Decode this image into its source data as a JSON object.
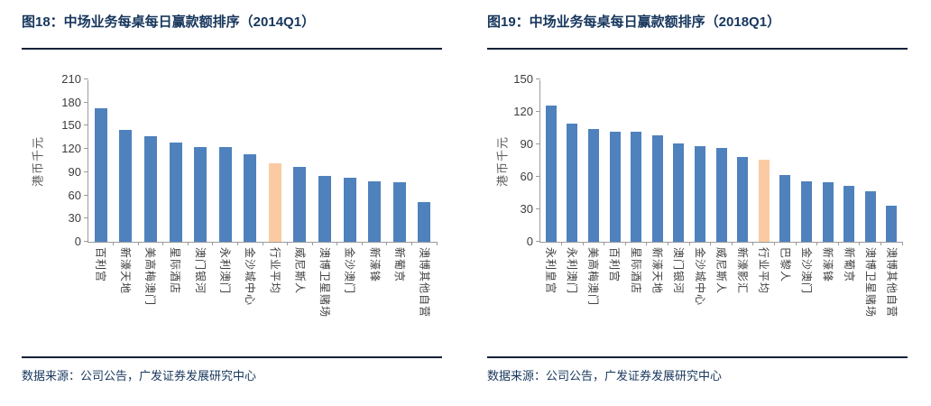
{
  "theme": {
    "navy": "#16365c",
    "rule_color": "#14213a",
    "axis_color": "#9b9b9b",
    "bar_blue": "#4f81bd",
    "bar_highlight_peach": "#facba3"
  },
  "chart_data": [
    {
      "type": "bar",
      "title": "图18：中场业务每桌每日赢款额排序（2014Q1）",
      "ylabel": "港币千元",
      "xlabel": "",
      "source": "数据来源：公司公告，广发证券发展研究中心",
      "ylim": [
        0,
        210
      ],
      "ytick_step": 30,
      "grid": false,
      "legend": false,
      "bar_color": "#4f81bd",
      "highlight_color": "#facba3",
      "highlight_index": 7,
      "highlight_category": "行业平均",
      "categories": [
        "百利宫",
        "新濠天地",
        "美高梅澳门",
        "星际酒店",
        "澳门银河",
        "永利澳门",
        "金沙城中心",
        "行业平均",
        "威尼斯人",
        "澳博卫星赌场",
        "金沙澳门",
        "新濠锋",
        "新葡京",
        "澳博其他自营"
      ],
      "values": [
        173,
        145,
        136,
        128,
        123,
        122,
        113,
        102,
        97,
        85,
        83,
        78,
        77,
        51
      ]
    },
    {
      "type": "bar",
      "title": "图19：中场业务每桌每日赢款额排序（2018Q1）",
      "ylabel": "港币千元",
      "xlabel": "",
      "source": "数据来源：公司公告，广发证券发展研究中心",
      "ylim": [
        0,
        150
      ],
      "ytick_step": 30,
      "grid": false,
      "legend": false,
      "bar_color": "#4f81bd",
      "highlight_color": "#facba3",
      "highlight_index": 10,
      "highlight_category": "行业平均",
      "categories": [
        "永利皇宫",
        "永利澳门",
        "美高梅澳门",
        "百利宫",
        "星际酒店",
        "新濠天地",
        "澳门银河",
        "金沙城中心",
        "威尼斯人",
        "新濠影汇",
        "行业平均",
        "巴黎人",
        "金沙澳门",
        "新濠锋",
        "新葡京",
        "澳博卫星赌场",
        "澳博其他自营"
      ],
      "values": [
        126,
        109,
        104,
        102,
        102,
        98,
        91,
        88,
        87,
        78,
        76,
        62,
        56,
        55,
        52,
        47,
        33
      ]
    }
  ]
}
